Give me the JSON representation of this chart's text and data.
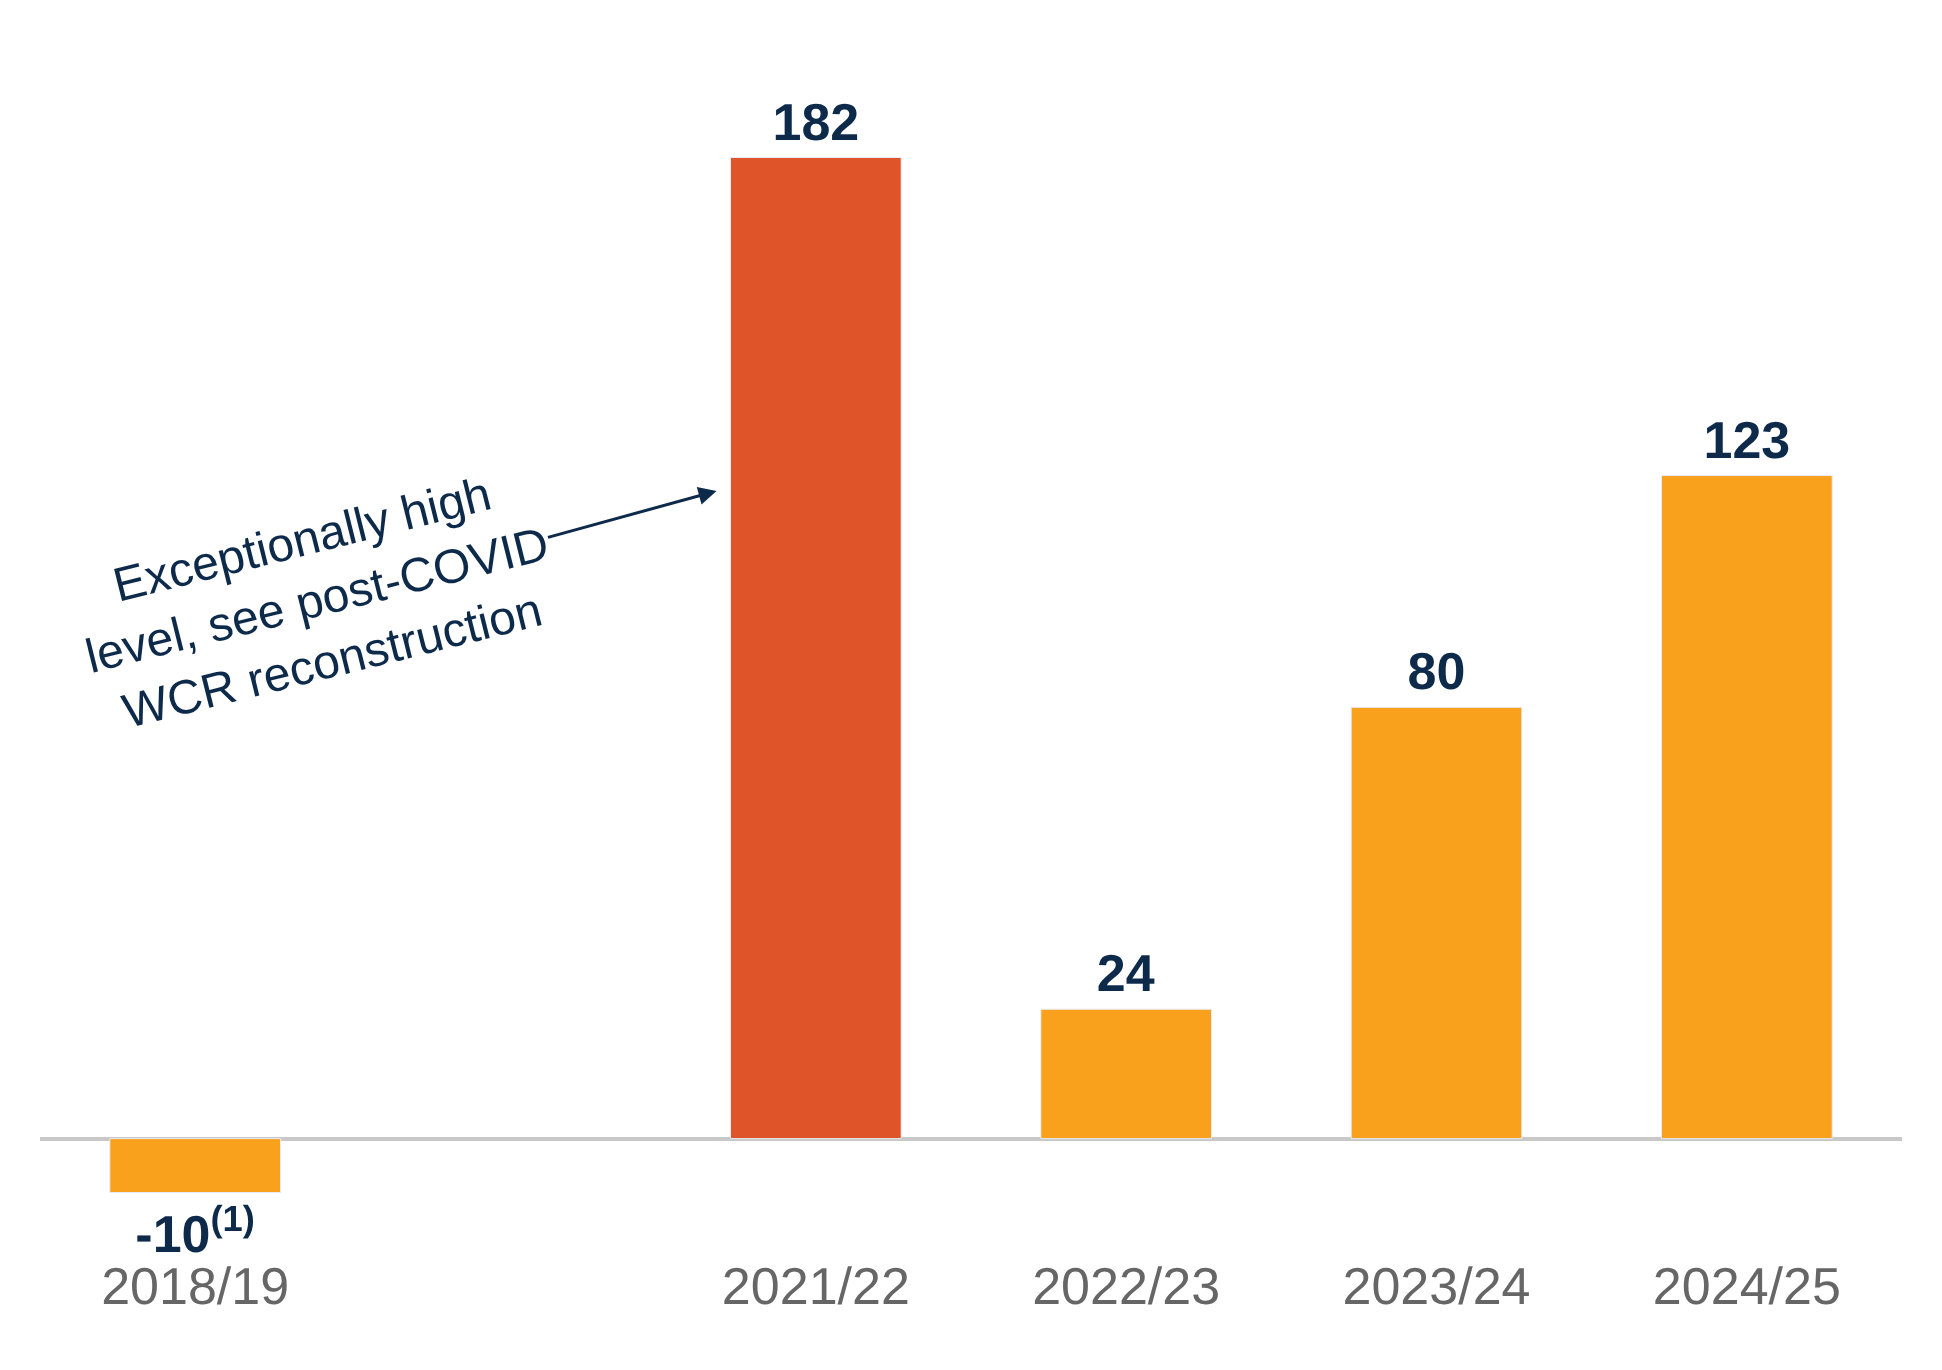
{
  "chart_data": {
    "type": "bar",
    "categories": [
      "2018/19",
      null,
      "2021/22",
      "2022/23",
      "2023/24",
      "2024/25"
    ],
    "values": [
      -10,
      null,
      182,
      24,
      80,
      123
    ],
    "colors": [
      "#f9a11d",
      null,
      "#e0542a",
      "#f9a11d",
      "#f9a11d",
      "#f9a11d"
    ],
    "value_labels": [
      "-10$^{(1)}$",
      null,
      "182",
      "24",
      "80",
      "123"
    ],
    "tick_labels": "x",
    "legend": false,
    "annotations": [
      "Exceptionally high level, see post-COVID WCR reconstruction"
    ]
  }
}
